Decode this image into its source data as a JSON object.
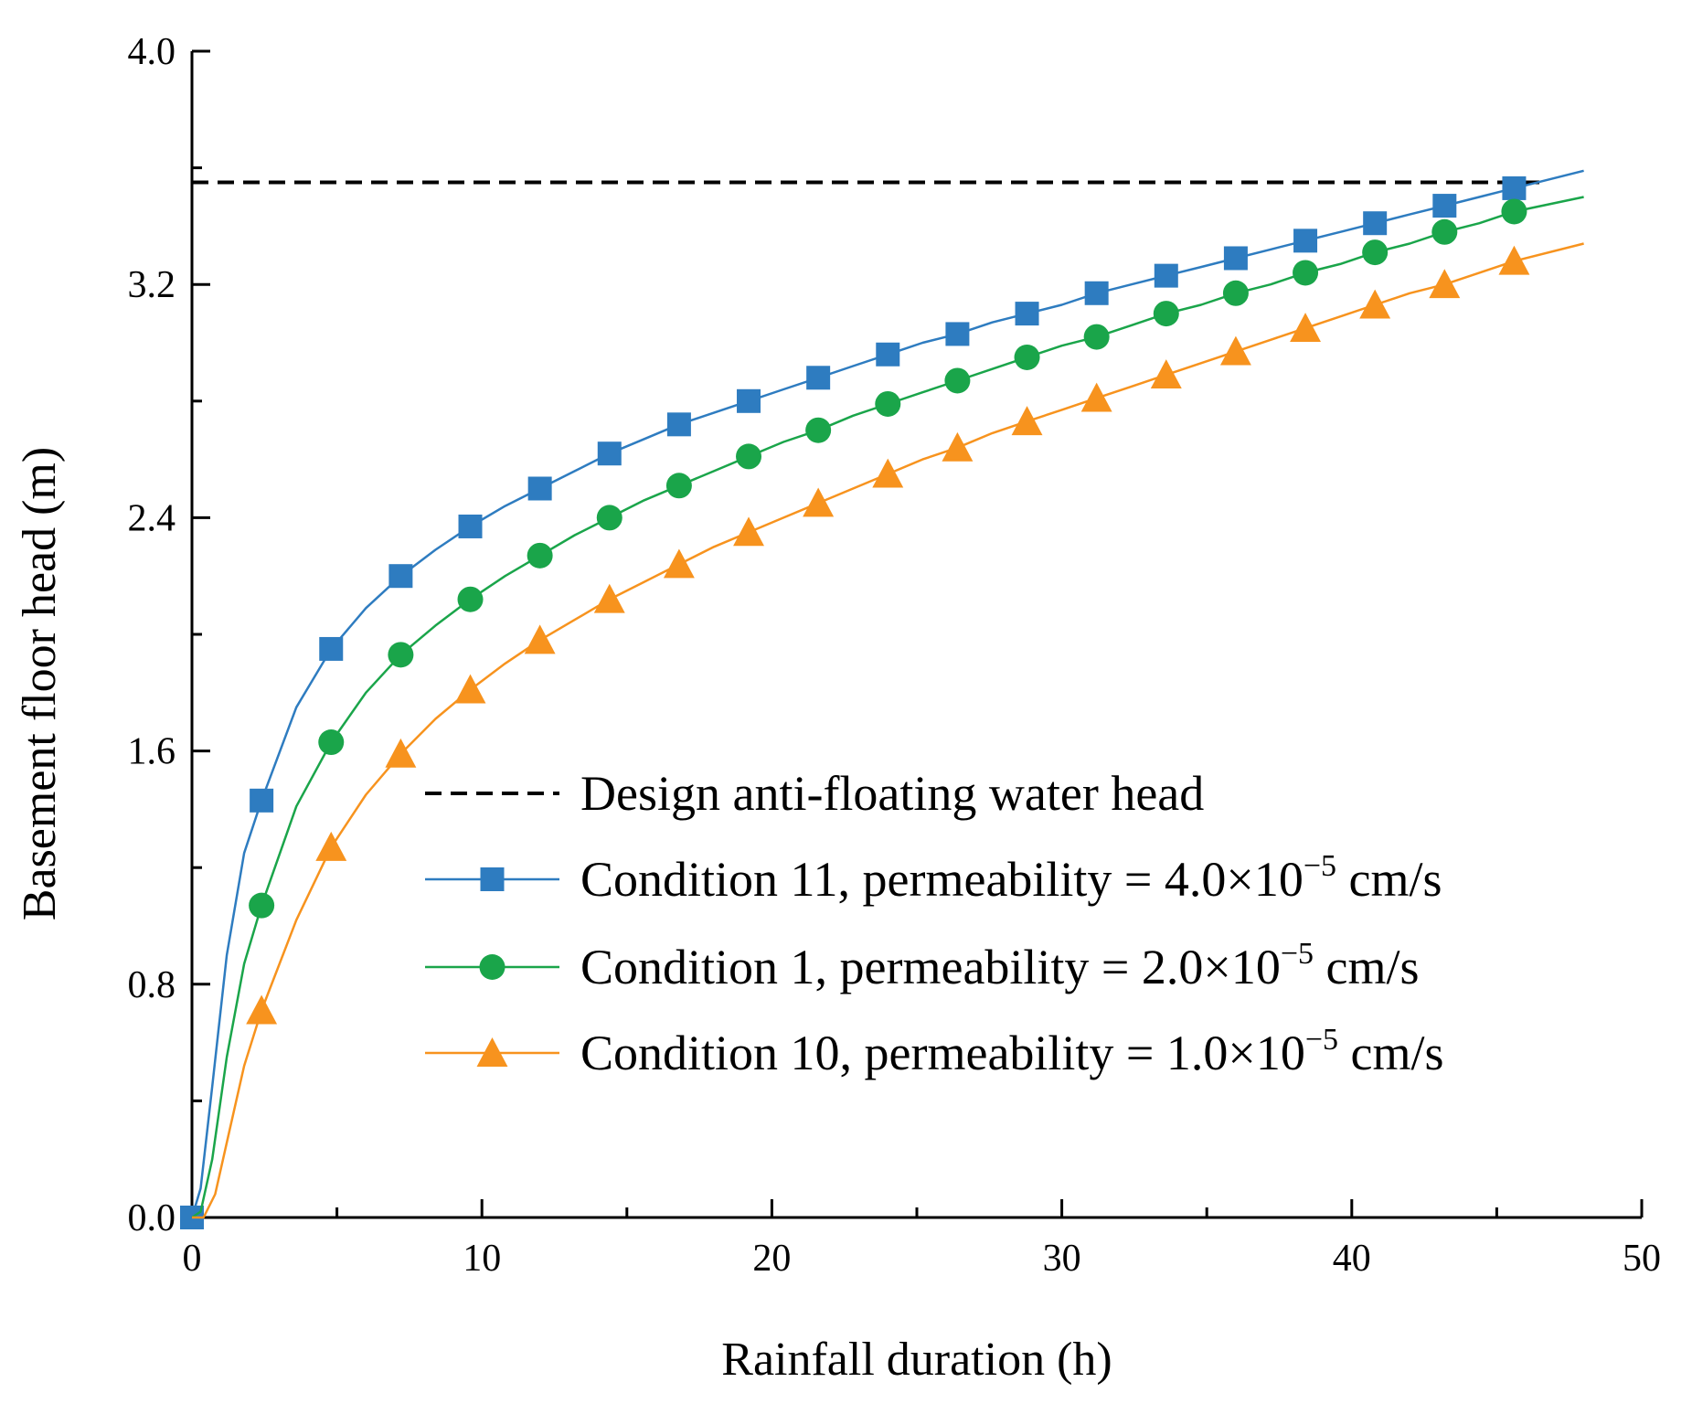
{
  "chart_data": {
    "type": "line",
    "title": "",
    "xlabel": "Rainfall duration (h)",
    "ylabel": "Basement floor head (m)",
    "xlim": [
      0,
      50
    ],
    "ylim": [
      0.0,
      4.0
    ],
    "x_ticks": [
      "0",
      "10",
      "20",
      "30",
      "40",
      "50"
    ],
    "y_ticks": [
      "0.0",
      "0.8",
      "1.6",
      "2.4",
      "3.2",
      "4.0"
    ],
    "grid": false,
    "legend_position": "center-right",
    "reference_line": {
      "name": "Design anti-floating water head",
      "y": 3.55,
      "color": "#000000",
      "style": "dashed"
    },
    "series": [
      {
        "name_main": "Condition 11, permeability = 4.0×10",
        "name_sup": "−5",
        "name_unit": " cm/s",
        "color": "#2e7cc0",
        "marker": "square",
        "x": [
          0,
          0.3,
          0.7,
          1.2,
          1.8,
          2.4,
          3.6,
          4.8,
          6.0,
          7.2,
          8.4,
          9.6,
          10.8,
          12.0,
          13.2,
          14.4,
          15.6,
          16.8,
          18.0,
          19.2,
          20.4,
          21.6,
          22.8,
          24.0,
          25.2,
          26.4,
          27.6,
          28.8,
          30.0,
          31.2,
          32.4,
          33.6,
          34.8,
          36.0,
          37.2,
          38.4,
          39.6,
          40.8,
          42.0,
          43.2,
          44.4,
          45.6,
          48.0
        ],
        "y": [
          0.0,
          0.1,
          0.45,
          0.9,
          1.25,
          1.43,
          1.75,
          1.95,
          2.09,
          2.2,
          2.29,
          2.37,
          2.44,
          2.5,
          2.56,
          2.62,
          2.67,
          2.72,
          2.76,
          2.8,
          2.84,
          2.88,
          2.92,
          2.96,
          3.0,
          3.03,
          3.07,
          3.1,
          3.13,
          3.17,
          3.2,
          3.23,
          3.26,
          3.29,
          3.32,
          3.35,
          3.38,
          3.41,
          3.44,
          3.47,
          3.5,
          3.53,
          3.59
        ],
        "marker_x": [
          0,
          2.4,
          4.8,
          7.2,
          9.6,
          12.0,
          14.4,
          16.8,
          19.2,
          21.6,
          24.0,
          26.4,
          28.8,
          31.2,
          33.6,
          36.0,
          38.4,
          40.8,
          43.2,
          45.6
        ]
      },
      {
        "name_main": "Condition 1, permeability = 2.0×10",
        "name_sup": "−5",
        "name_unit": " cm/s",
        "color": "#1aa54a",
        "marker": "circle",
        "x": [
          0,
          0.3,
          0.7,
          1.2,
          1.8,
          2.4,
          3.6,
          4.8,
          6.0,
          7.2,
          8.4,
          9.6,
          10.8,
          12.0,
          13.2,
          14.4,
          15.6,
          16.8,
          18.0,
          19.2,
          20.4,
          21.6,
          22.8,
          24.0,
          25.2,
          26.4,
          27.6,
          28.8,
          30.0,
          31.2,
          32.4,
          33.6,
          34.8,
          36.0,
          37.2,
          38.4,
          39.6,
          40.8,
          42.0,
          43.2,
          44.4,
          45.6,
          48.0
        ],
        "y": [
          0.0,
          0.02,
          0.2,
          0.55,
          0.87,
          1.07,
          1.41,
          1.63,
          1.8,
          1.93,
          2.03,
          2.12,
          2.2,
          2.27,
          2.34,
          2.4,
          2.46,
          2.51,
          2.56,
          2.61,
          2.66,
          2.7,
          2.75,
          2.79,
          2.83,
          2.87,
          2.91,
          2.95,
          2.99,
          3.02,
          3.06,
          3.1,
          3.13,
          3.17,
          3.2,
          3.24,
          3.27,
          3.31,
          3.34,
          3.38,
          3.41,
          3.45,
          3.5
        ],
        "marker_x": [
          2.4,
          4.8,
          7.2,
          9.6,
          12.0,
          14.4,
          16.8,
          19.2,
          21.6,
          24.0,
          26.4,
          28.8,
          31.2,
          33.6,
          36.0,
          38.4,
          40.8,
          43.2,
          45.6
        ]
      },
      {
        "name_main": "Condition 10, permeability = 1.0×10",
        "name_sup": "−5",
        "name_unit": " cm/s",
        "color": "#f7931e",
        "marker": "triangle",
        "x": [
          0,
          0.4,
          0.8,
          1.3,
          1.8,
          2.4,
          3.6,
          4.8,
          6.0,
          7.2,
          8.4,
          9.6,
          10.8,
          12.0,
          13.2,
          14.4,
          15.6,
          16.8,
          18.0,
          19.2,
          20.4,
          21.6,
          22.8,
          24.0,
          25.2,
          26.4,
          27.6,
          28.8,
          30.0,
          31.2,
          32.4,
          33.6,
          34.8,
          36.0,
          37.2,
          38.4,
          39.6,
          40.8,
          42.0,
          43.2,
          44.4,
          45.6,
          48.0
        ],
        "y": [
          0.0,
          0.0,
          0.08,
          0.3,
          0.52,
          0.71,
          1.02,
          1.27,
          1.45,
          1.59,
          1.71,
          1.81,
          1.9,
          1.98,
          2.05,
          2.12,
          2.18,
          2.24,
          2.3,
          2.35,
          2.4,
          2.45,
          2.5,
          2.55,
          2.6,
          2.64,
          2.69,
          2.73,
          2.77,
          2.81,
          2.85,
          2.89,
          2.93,
          2.97,
          3.01,
          3.05,
          3.09,
          3.13,
          3.17,
          3.2,
          3.24,
          3.28,
          3.34
        ],
        "marker_x": [
          2.4,
          4.8,
          7.2,
          9.6,
          12.0,
          14.4,
          16.8,
          19.2,
          21.6,
          24.0,
          26.4,
          28.8,
          31.2,
          33.6,
          36.0,
          38.4,
          40.8,
          43.2,
          45.6
        ]
      }
    ]
  }
}
